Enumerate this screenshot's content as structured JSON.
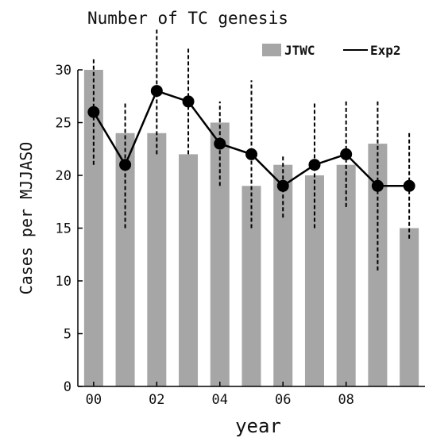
{
  "chart_data": {
    "type": "bar",
    "title": "Number of TC genesis",
    "xlabel": "year",
    "ylabel": "Cases per MJJASO",
    "ylim": [
      0,
      30
    ],
    "xlim": [
      -0.5,
      10.5
    ],
    "yticks": [
      "0",
      "5",
      "10",
      "15",
      "20",
      "25",
      "30"
    ],
    "xticks": [
      {
        "label": "00",
        "index": 0
      },
      {
        "label": "02",
        "index": 2
      },
      {
        "label": "04",
        "index": 4
      },
      {
        "label": "06",
        "index": 6
      },
      {
        "label": "08",
        "index": 8
      }
    ],
    "legend_position": "top-right",
    "bars": {
      "name": "JTWC",
      "color": "#a6a6a6",
      "values": [
        30,
        24,
        24,
        22,
        25,
        19,
        21,
        20,
        21,
        23,
        15
      ]
    },
    "line": {
      "name": "Exp2",
      "color": "#000000",
      "values": [
        26,
        21,
        28,
        27,
        23,
        22,
        19,
        21,
        22,
        19,
        19
      ],
      "error_low": [
        21,
        15,
        22,
        22,
        19,
        15,
        16,
        15,
        17,
        11,
        14
      ],
      "error_high": [
        31,
        27,
        34,
        32,
        27,
        29,
        22,
        27,
        27,
        27,
        24
      ]
    }
  }
}
